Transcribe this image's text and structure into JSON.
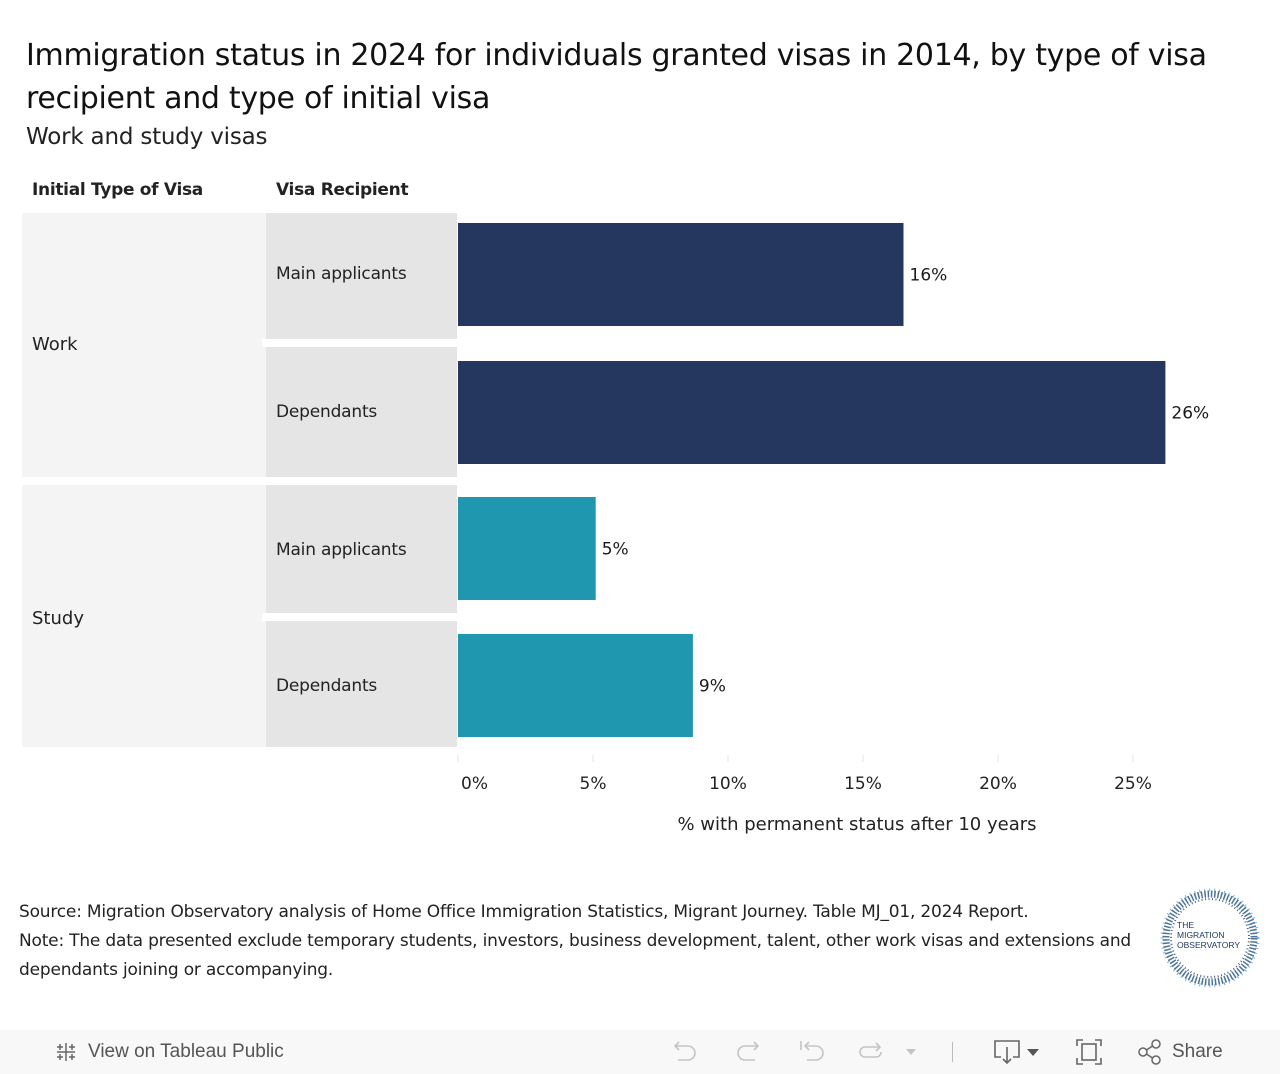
{
  "header": {
    "title": "Immigration status in 2024 for individuals granted visas in 2014, by type of visa recipient and type of initial visa",
    "subtitle": "Work and study visas"
  },
  "table": {
    "column_headers": [
      "Initial Type of Visa",
      "Visa Recipient"
    ],
    "groups": [
      {
        "label": "Work",
        "rows": [
          "Main applicants",
          "Dependants"
        ]
      },
      {
        "label": "Study",
        "rows": [
          "Main applicants",
          "Dependants"
        ]
      }
    ]
  },
  "chart_data": {
    "type": "bar",
    "orientation": "horizontal",
    "title": "Immigration status in 2024 for individuals granted visas in 2014, by type of visa recipient and type of initial visa",
    "subtitle": "Work and study visas",
    "xlabel": "% with permanent status after 10 years",
    "ylabel": "",
    "xlim": [
      0,
      25.5
    ],
    "x_ticks": [
      0,
      5,
      10,
      15,
      20,
      25
    ],
    "x_tick_labels": [
      "0%",
      "5%",
      "10%",
      "15%",
      "20%",
      "25%"
    ],
    "grid": false,
    "categories": [
      "Work / Main applicants",
      "Work / Dependants",
      "Study / Main applicants",
      "Study / Dependants"
    ],
    "groups": [
      "Work",
      "Work",
      "Study",
      "Study"
    ],
    "values": [
      16.5,
      26.2,
      5.1,
      8.7
    ],
    "data_labels": [
      "16%",
      "26%",
      "5%",
      "9%"
    ],
    "colors": {
      "Work": "#25365f",
      "Study": "#1f97ae"
    }
  },
  "footer": {
    "source": "Source: Migration Observatory analysis of Home Office Immigration Statistics, Migrant Journey. Table MJ_01, 2024 Report.",
    "note": "Note: The data presented exclude temporary students, investors, business development,  talent, other work visas and extensions and dependants joining or accompanying."
  },
  "logo": {
    "line1": "THE",
    "line2": "MIGRATION",
    "line3": "OBSERVATORY"
  },
  "toolbar": {
    "view_on_tableau": "View on Tableau Public",
    "share": "Share",
    "icons": [
      "tableau-logo-icon",
      "undo-icon",
      "redo-icon",
      "revert-icon",
      "refresh-icon",
      "dropdown-icon",
      "download-icon",
      "fullscreen-icon",
      "share-icon"
    ]
  }
}
